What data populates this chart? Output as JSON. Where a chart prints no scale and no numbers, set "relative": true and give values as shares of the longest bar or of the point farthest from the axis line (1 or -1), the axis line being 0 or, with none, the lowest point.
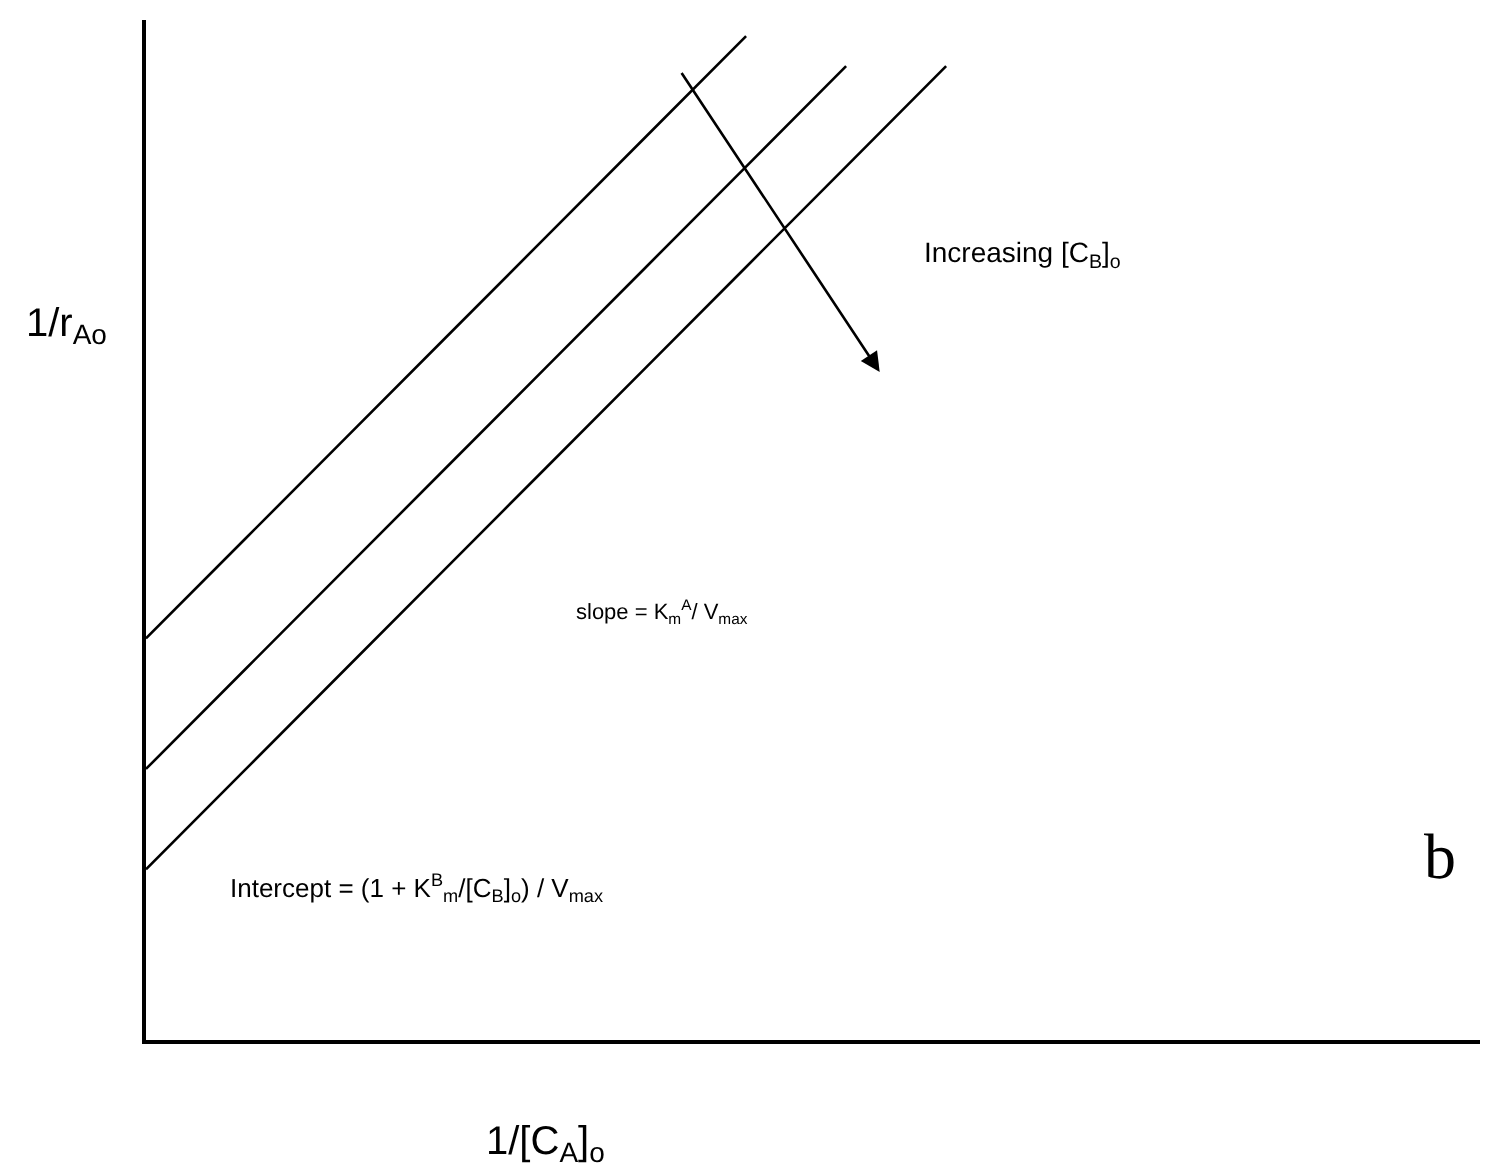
{
  "chart_data": {
    "type": "line",
    "relative": true,
    "xlabel": "1/[C$_{A}$]$_{o}$",
    "ylabel": "1/r$_{Ao}$",
    "categories": [
      null,
      null,
      null,
      null,
      null,
      null,
      null,
      null,
      null,
      null,
      null,
      null,
      null,
      null
    ],
    "series": [
      {
        "color": "#000000",
        "values": [
          0.4,
          0.5,
          0.6,
          0.7,
          0.8,
          0.9,
          1.0,
          null,
          null,
          null,
          null,
          null,
          null,
          null
        ]
      },
      {
        "color": "#000000",
        "values": [
          0.27,
          0.37,
          0.47,
          0.57,
          0.67,
          0.77,
          0.87,
          0.97,
          null,
          null,
          null,
          null,
          null,
          null
        ]
      },
      {
        "color": "#000000",
        "values": [
          0.17,
          0.27,
          0.37,
          0.47,
          0.57,
          0.67,
          0.77,
          0.87,
          0.97,
          null,
          null,
          null,
          null,
          null
        ]
      }
    ],
    "annotations": [
      "Increasing [C$_{B}$]$_{o}$",
      "slope = K$_{m}$$^{A}$/ V$_{max}$",
      "Intercept = (1 + K$^{B}$$_{m}$/[C$_{B}$]$_{o}$) / V$_{max}$",
      "b"
    ],
    "marker": "none",
    "line_style": "solid"
  }
}
